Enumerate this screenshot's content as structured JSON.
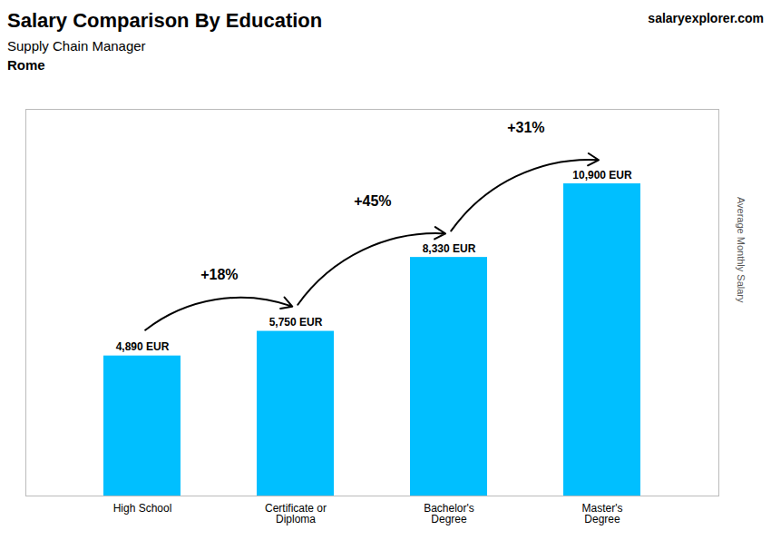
{
  "chart_data": {
    "type": "bar",
    "title": "Salary Comparison By Education",
    "subtitle": "Supply Chain Manager",
    "city": "Rome",
    "watermark": "salaryexplorer.com",
    "ylabel": "Average Monthly Salary",
    "categories": [
      "High School",
      "Certificate or\nDiploma",
      "Bachelor's\nDegree",
      "Master's\nDegree"
    ],
    "values": [
      4890,
      5750,
      8330,
      10900
    ],
    "value_labels": [
      "4,890 EUR",
      "5,750 EUR",
      "8,330 EUR",
      "10,900 EUR"
    ],
    "data_labels": true,
    "color": "#00BFFF",
    "ylim": [
      0,
      13500
    ],
    "yticks": [],
    "tick_labels": "x",
    "grid": false,
    "annotations": [
      {
        "text": "+18%",
        "from": "High School",
        "to": "Certificate or\nDiploma"
      },
      {
        "text": "+45%",
        "from": "Certificate or\nDiploma",
        "to": "Bachelor's\nDegree"
      },
      {
        "text": "+31%",
        "from": "Bachelor's\nDegree",
        "to": "Master's\nDegree"
      }
    ]
  }
}
